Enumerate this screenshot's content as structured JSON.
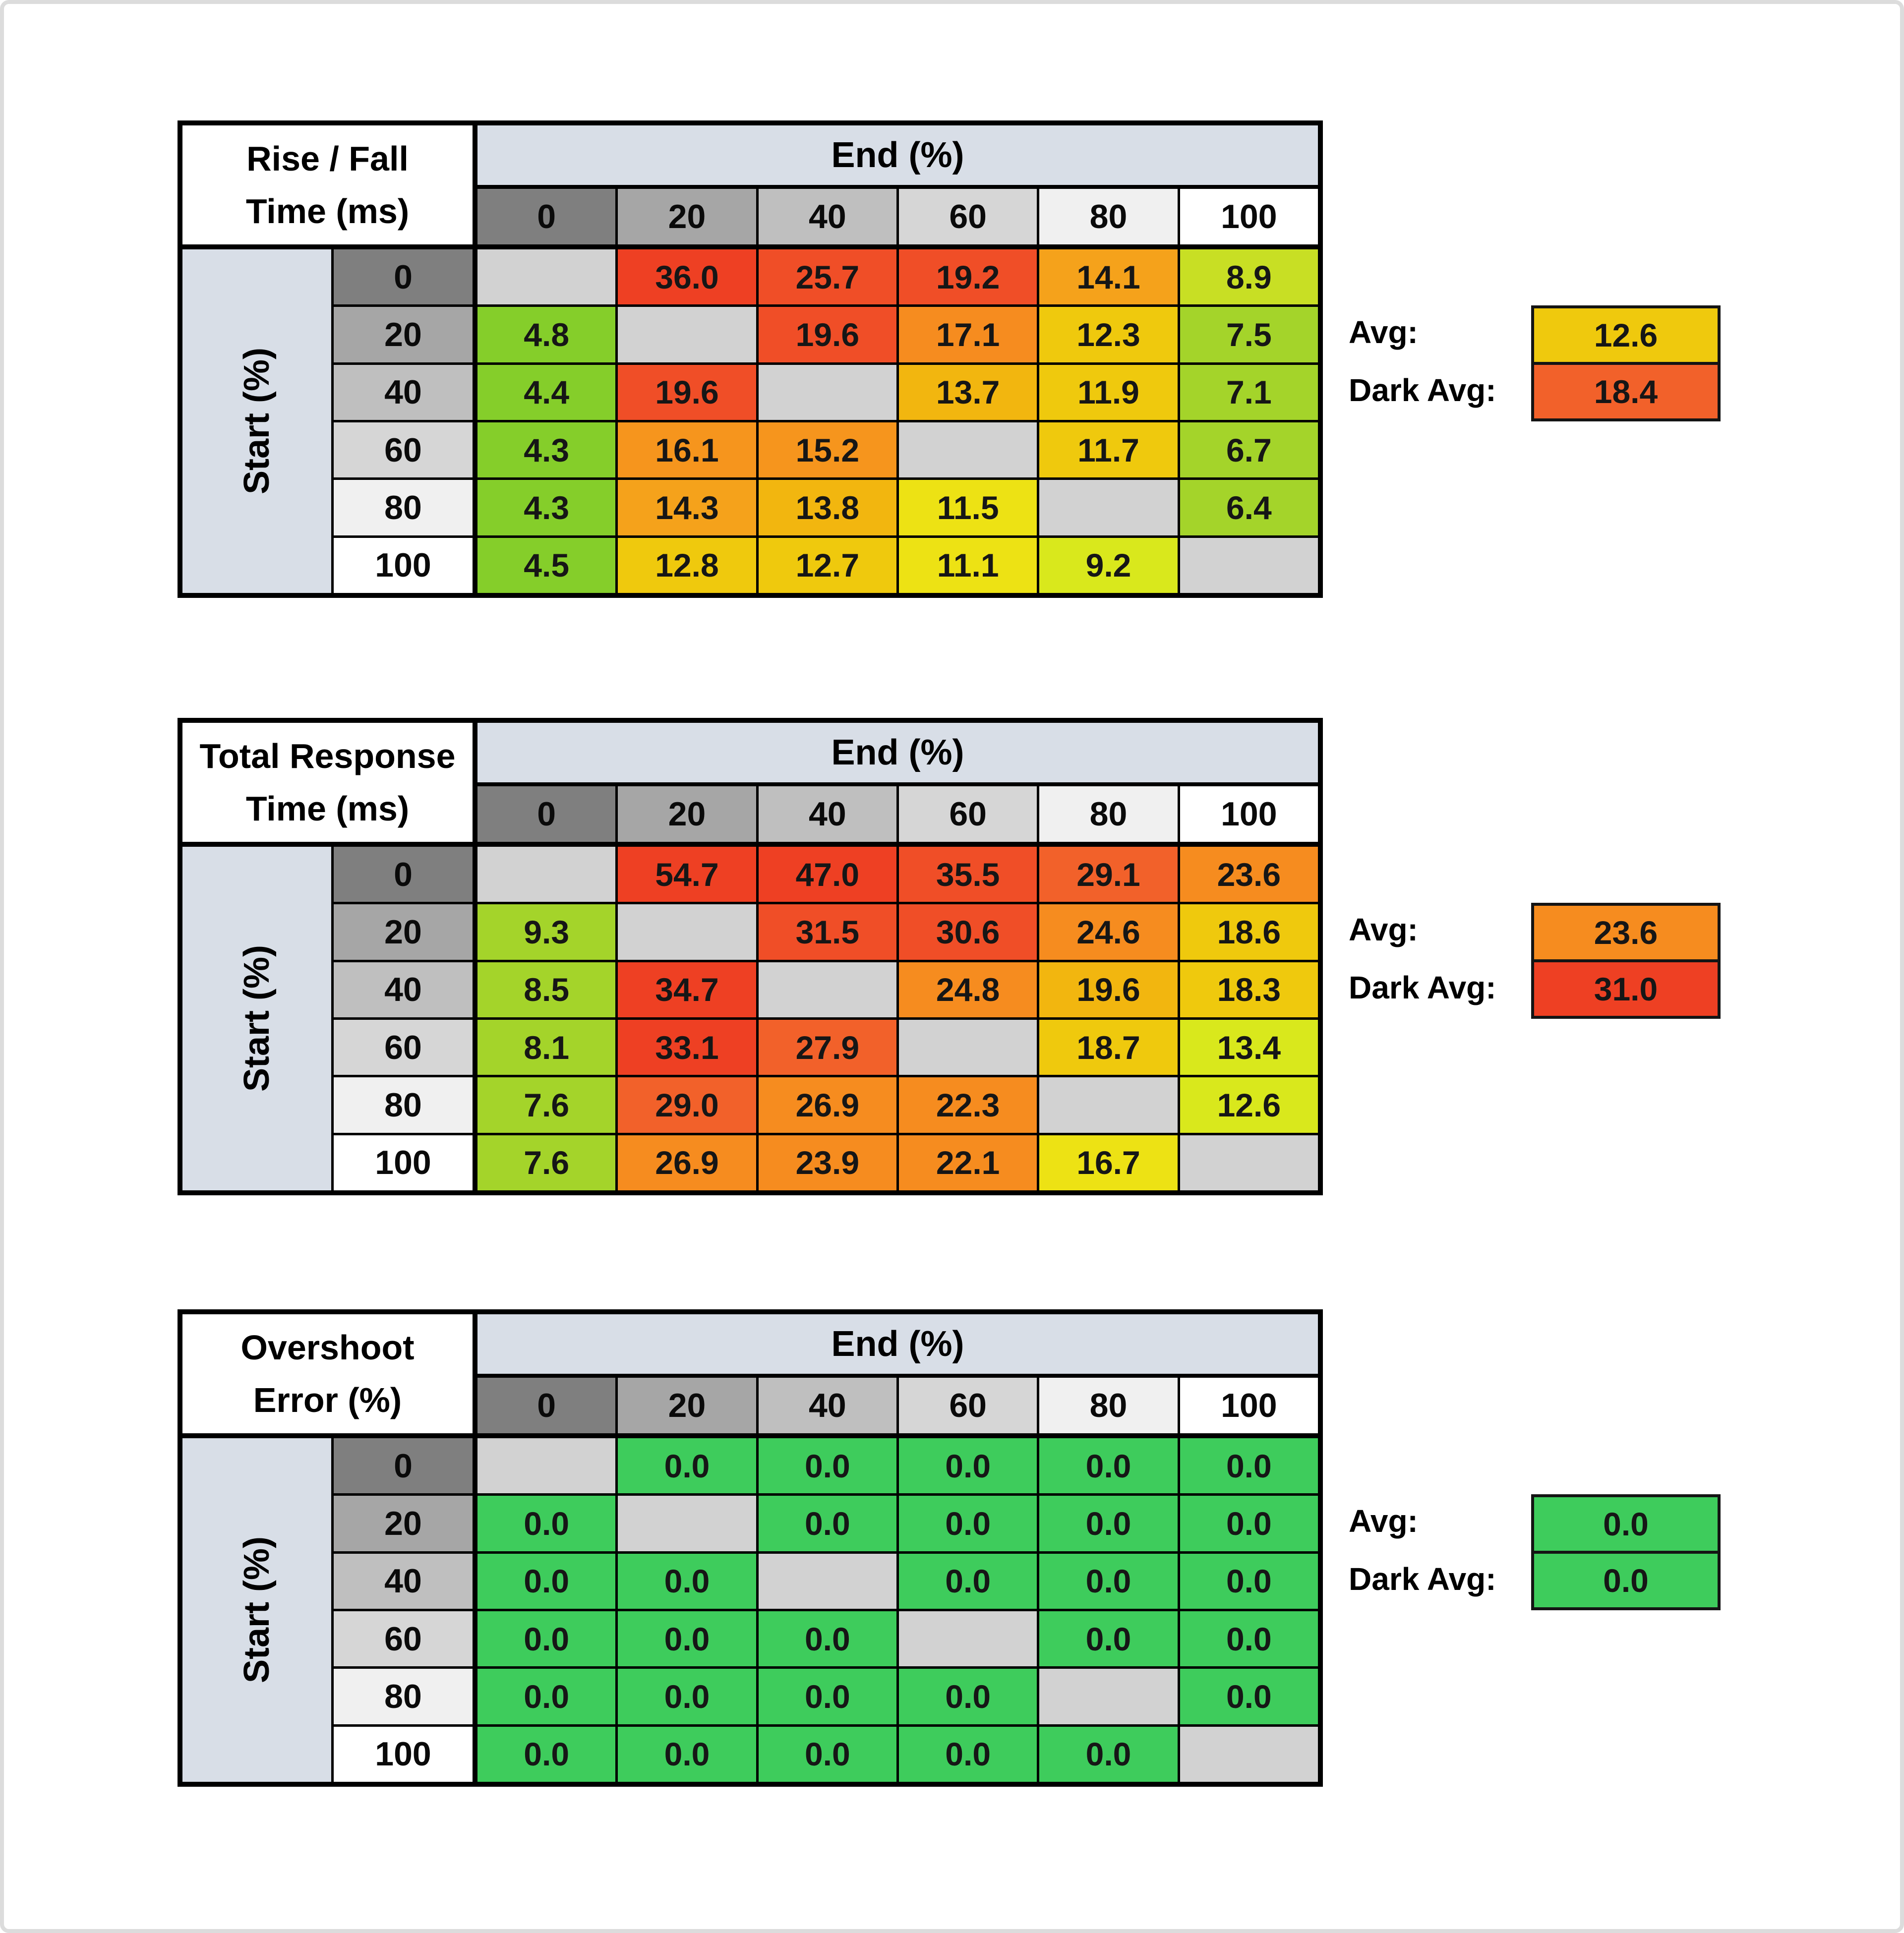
{
  "page": {
    "background": "#ffffff",
    "edge_color": "#dcdcdc"
  },
  "palette": {
    "G1": "#85CE2A",
    "G2": "#A4D42A",
    "G3": "#C8DF24",
    "G4": "#D9E81C",
    "Y1": "#EDE214",
    "Y2": "#EFC90D",
    "Y3": "#F2B60F",
    "O1": "#F5A21B",
    "O2": "#F6951D",
    "O3": "#F68C1F",
    "R1": "#F2612A",
    "R2": "#F04E27",
    "R3": "#EE4023",
    "GR": "#3ECC5C",
    "DG": "#D2D2D2"
  },
  "header_band_color": "#D8DEE7",
  "header_grays": [
    "#7F7F7F",
    "#A6A6A6",
    "#BFBFBF",
    "#D6D6D6",
    "#F0F0F0",
    "#FFFFFF"
  ],
  "axis": {
    "col_header": "End (%)",
    "row_header": "Start (%)",
    "labels": [
      "0",
      "20",
      "40",
      "60",
      "80",
      "100"
    ]
  },
  "summary_labels": {
    "avg": "Avg:",
    "dark_avg": "Dark Avg:"
  },
  "tables": [
    {
      "id": "rise-fall",
      "title1": "Rise / Fall",
      "title2": "Time (ms)",
      "cells": [
        [
          null,
          {
            "v": "36.0",
            "c": "R3"
          },
          {
            "v": "25.7",
            "c": "R2"
          },
          {
            "v": "19.2",
            "c": "R2"
          },
          {
            "v": "14.1",
            "c": "O1"
          },
          {
            "v": "8.9",
            "c": "G3"
          }
        ],
        [
          {
            "v": "4.8",
            "c": "G1"
          },
          null,
          {
            "v": "19.6",
            "c": "R2"
          },
          {
            "v": "17.1",
            "c": "O3"
          },
          {
            "v": "12.3",
            "c": "Y2"
          },
          {
            "v": "7.5",
            "c": "G2"
          }
        ],
        [
          {
            "v": "4.4",
            "c": "G1"
          },
          {
            "v": "19.6",
            "c": "R2"
          },
          null,
          {
            "v": "13.7",
            "c": "Y3"
          },
          {
            "v": "11.9",
            "c": "Y2"
          },
          {
            "v": "7.1",
            "c": "G2"
          }
        ],
        [
          {
            "v": "4.3",
            "c": "G1"
          },
          {
            "v": "16.1",
            "c": "O2"
          },
          {
            "v": "15.2",
            "c": "O2"
          },
          null,
          {
            "v": "11.7",
            "c": "Y2"
          },
          {
            "v": "6.7",
            "c": "G2"
          }
        ],
        [
          {
            "v": "4.3",
            "c": "G1"
          },
          {
            "v": "14.3",
            "c": "O1"
          },
          {
            "v": "13.8",
            "c": "Y3"
          },
          {
            "v": "11.5",
            "c": "Y1"
          },
          null,
          {
            "v": "6.4",
            "c": "G2"
          }
        ],
        [
          {
            "v": "4.5",
            "c": "G1"
          },
          {
            "v": "12.8",
            "c": "Y2"
          },
          {
            "v": "12.7",
            "c": "Y2"
          },
          {
            "v": "11.1",
            "c": "Y1"
          },
          {
            "v": "9.2",
            "c": "G4"
          },
          null
        ]
      ],
      "avg": {
        "v": "12.6",
        "c": "Y2"
      },
      "dark_avg": {
        "v": "18.4",
        "c": "R1"
      }
    },
    {
      "id": "total-response",
      "title1": "Total Response",
      "title2": "Time (ms)",
      "cells": [
        [
          null,
          {
            "v": "54.7",
            "c": "R3"
          },
          {
            "v": "47.0",
            "c": "R3"
          },
          {
            "v": "35.5",
            "c": "R2"
          },
          {
            "v": "29.1",
            "c": "R1"
          },
          {
            "v": "23.6",
            "c": "O3"
          }
        ],
        [
          {
            "v": "9.3",
            "c": "G2"
          },
          null,
          {
            "v": "31.5",
            "c": "R2"
          },
          {
            "v": "30.6",
            "c": "R2"
          },
          {
            "v": "24.6",
            "c": "O3"
          },
          {
            "v": "18.6",
            "c": "Y2"
          }
        ],
        [
          {
            "v": "8.5",
            "c": "G2"
          },
          {
            "v": "34.7",
            "c": "R3"
          },
          null,
          {
            "v": "24.8",
            "c": "O3"
          },
          {
            "v": "19.6",
            "c": "Y3"
          },
          {
            "v": "18.3",
            "c": "Y2"
          }
        ],
        [
          {
            "v": "8.1",
            "c": "G2"
          },
          {
            "v": "33.1",
            "c": "R3"
          },
          {
            "v": "27.9",
            "c": "R1"
          },
          null,
          {
            "v": "18.7",
            "c": "Y2"
          },
          {
            "v": "13.4",
            "c": "G4"
          }
        ],
        [
          {
            "v": "7.6",
            "c": "G2"
          },
          {
            "v": "29.0",
            "c": "R1"
          },
          {
            "v": "26.9",
            "c": "O3"
          },
          {
            "v": "22.3",
            "c": "O3"
          },
          null,
          {
            "v": "12.6",
            "c": "G4"
          }
        ],
        [
          {
            "v": "7.6",
            "c": "G2"
          },
          {
            "v": "26.9",
            "c": "O3"
          },
          {
            "v": "23.9",
            "c": "O3"
          },
          {
            "v": "22.1",
            "c": "O3"
          },
          {
            "v": "16.7",
            "c": "Y1"
          },
          null
        ]
      ],
      "avg": {
        "v": "23.6",
        "c": "O3"
      },
      "dark_avg": {
        "v": "31.0",
        "c": "R3"
      }
    },
    {
      "id": "overshoot",
      "title1": "Overshoot",
      "title2": "Error (%)",
      "cells": [
        [
          null,
          {
            "v": "0.0",
            "c": "GR"
          },
          {
            "v": "0.0",
            "c": "GR"
          },
          {
            "v": "0.0",
            "c": "GR"
          },
          {
            "v": "0.0",
            "c": "GR"
          },
          {
            "v": "0.0",
            "c": "GR"
          }
        ],
        [
          {
            "v": "0.0",
            "c": "GR"
          },
          null,
          {
            "v": "0.0",
            "c": "GR"
          },
          {
            "v": "0.0",
            "c": "GR"
          },
          {
            "v": "0.0",
            "c": "GR"
          },
          {
            "v": "0.0",
            "c": "GR"
          }
        ],
        [
          {
            "v": "0.0",
            "c": "GR"
          },
          {
            "v": "0.0",
            "c": "GR"
          },
          null,
          {
            "v": "0.0",
            "c": "GR"
          },
          {
            "v": "0.0",
            "c": "GR"
          },
          {
            "v": "0.0",
            "c": "GR"
          }
        ],
        [
          {
            "v": "0.0",
            "c": "GR"
          },
          {
            "v": "0.0",
            "c": "GR"
          },
          {
            "v": "0.0",
            "c": "GR"
          },
          null,
          {
            "v": "0.0",
            "c": "GR"
          },
          {
            "v": "0.0",
            "c": "GR"
          }
        ],
        [
          {
            "v": "0.0",
            "c": "GR"
          },
          {
            "v": "0.0",
            "c": "GR"
          },
          {
            "v": "0.0",
            "c": "GR"
          },
          {
            "v": "0.0",
            "c": "GR"
          },
          null,
          {
            "v": "0.0",
            "c": "GR"
          }
        ],
        [
          {
            "v": "0.0",
            "c": "GR"
          },
          {
            "v": "0.0",
            "c": "GR"
          },
          {
            "v": "0.0",
            "c": "GR"
          },
          {
            "v": "0.0",
            "c": "GR"
          },
          {
            "v": "0.0",
            "c": "GR"
          },
          null
        ]
      ],
      "avg": {
        "v": "0.0",
        "c": "GR"
      },
      "dark_avg": {
        "v": "0.0",
        "c": "GR"
      }
    }
  ],
  "chart_data": [
    {
      "type": "heatmap",
      "title": "Rise / Fall Time (ms)",
      "xlabel": "End (%)",
      "ylabel": "Start (%)",
      "x": [
        0,
        20,
        40,
        60,
        80,
        100
      ],
      "y": [
        0,
        20,
        40,
        60,
        80,
        100
      ],
      "values": [
        [
          null,
          36.0,
          25.7,
          19.2,
          14.1,
          8.9
        ],
        [
          4.8,
          null,
          19.6,
          17.1,
          12.3,
          7.5
        ],
        [
          4.4,
          19.6,
          null,
          13.7,
          11.9,
          7.1
        ],
        [
          4.3,
          16.1,
          15.2,
          null,
          11.7,
          6.7
        ],
        [
          4.3,
          14.3,
          13.8,
          11.5,
          null,
          6.4
        ],
        [
          4.5,
          12.8,
          12.7,
          11.1,
          9.2,
          null
        ]
      ],
      "avg": 12.6,
      "dark_avg": 18.4
    },
    {
      "type": "heatmap",
      "title": "Total Response Time (ms)",
      "xlabel": "End (%)",
      "ylabel": "Start (%)",
      "x": [
        0,
        20,
        40,
        60,
        80,
        100
      ],
      "y": [
        0,
        20,
        40,
        60,
        80,
        100
      ],
      "values": [
        [
          null,
          54.7,
          47.0,
          35.5,
          29.1,
          23.6
        ],
        [
          9.3,
          null,
          31.5,
          30.6,
          24.6,
          18.6
        ],
        [
          8.5,
          34.7,
          null,
          24.8,
          19.6,
          18.3
        ],
        [
          8.1,
          33.1,
          27.9,
          null,
          18.7,
          13.4
        ],
        [
          7.6,
          29.0,
          26.9,
          22.3,
          null,
          12.6
        ],
        [
          7.6,
          26.9,
          23.9,
          22.1,
          16.7,
          null
        ]
      ],
      "avg": 23.6,
      "dark_avg": 31.0
    },
    {
      "type": "heatmap",
      "title": "Overshoot Error (%)",
      "xlabel": "End (%)",
      "ylabel": "Start (%)",
      "x": [
        0,
        20,
        40,
        60,
        80,
        100
      ],
      "y": [
        0,
        20,
        40,
        60,
        80,
        100
      ],
      "values": [
        [
          null,
          0.0,
          0.0,
          0.0,
          0.0,
          0.0
        ],
        [
          0.0,
          null,
          0.0,
          0.0,
          0.0,
          0.0
        ],
        [
          0.0,
          0.0,
          null,
          0.0,
          0.0,
          0.0
        ],
        [
          0.0,
          0.0,
          0.0,
          null,
          0.0,
          0.0
        ],
        [
          0.0,
          0.0,
          0.0,
          0.0,
          null,
          0.0
        ],
        [
          0.0,
          0.0,
          0.0,
          0.0,
          0.0,
          null
        ]
      ],
      "avg": 0.0,
      "dark_avg": 0.0
    }
  ]
}
